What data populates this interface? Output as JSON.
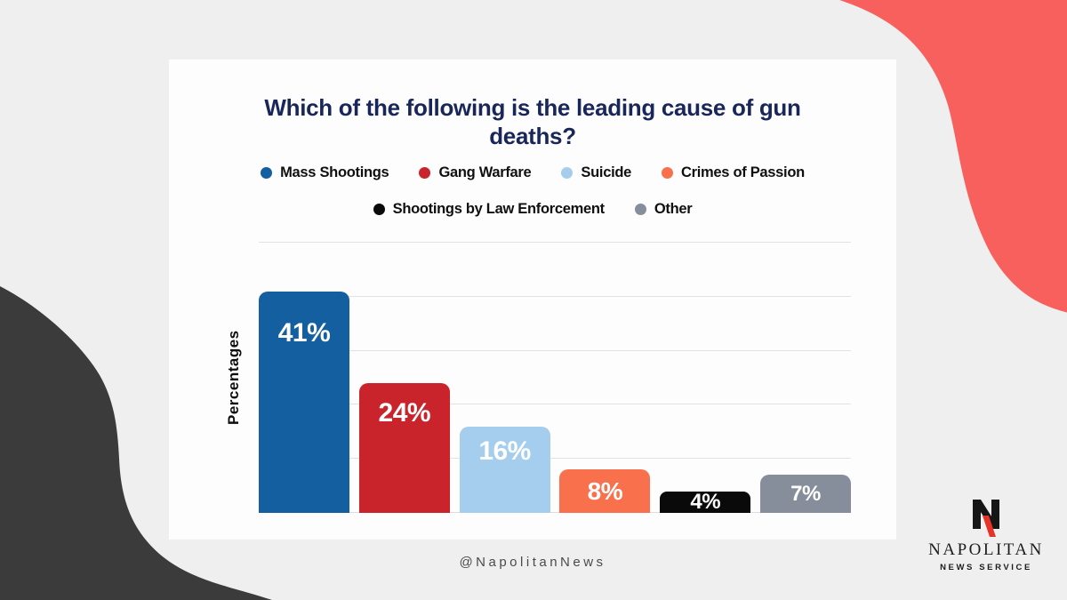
{
  "card": {
    "title_lines": [
      "Which of the following is the leading cause of gun",
      "deaths?"
    ],
    "title_color": "#18265a"
  },
  "chart_data": {
    "type": "bar",
    "title": "Which of the following is the leading cause of gun deaths?",
    "xlabel": "",
    "ylabel": "Percentages",
    "ylim": [
      0,
      50
    ],
    "grid": "horizontal, every 10%",
    "legend_position": "top, two centered rows",
    "legend_break": 4,
    "categories": [
      "Mass Shootings",
      "Gang Warfare",
      "Suicide",
      "Crimes of Passion",
      "Shootings by Law Enforcement",
      "Other"
    ],
    "values": [
      41,
      24,
      16,
      8,
      4,
      7
    ],
    "value_labels": [
      "41%",
      "24%",
      "16%",
      "8%",
      "4%",
      "7%"
    ],
    "colors": [
      "#145f9f",
      "#c9242b",
      "#a5cdee",
      "#f9704d",
      "#0a0a0a",
      "#878e9b"
    ]
  },
  "footer": {
    "handle": "@NapolitanNews"
  },
  "brand": {
    "name": "NAPOLITAN",
    "tagline": "NEWS SERVICE",
    "mark_black": "#161616",
    "mark_red": "#e63329"
  },
  "decor": {
    "background": "#efefef",
    "card_background": "#fdfdfd",
    "blob_top_right": "#f8605e",
    "blob_bottom_left": "#3b3b3b"
  }
}
